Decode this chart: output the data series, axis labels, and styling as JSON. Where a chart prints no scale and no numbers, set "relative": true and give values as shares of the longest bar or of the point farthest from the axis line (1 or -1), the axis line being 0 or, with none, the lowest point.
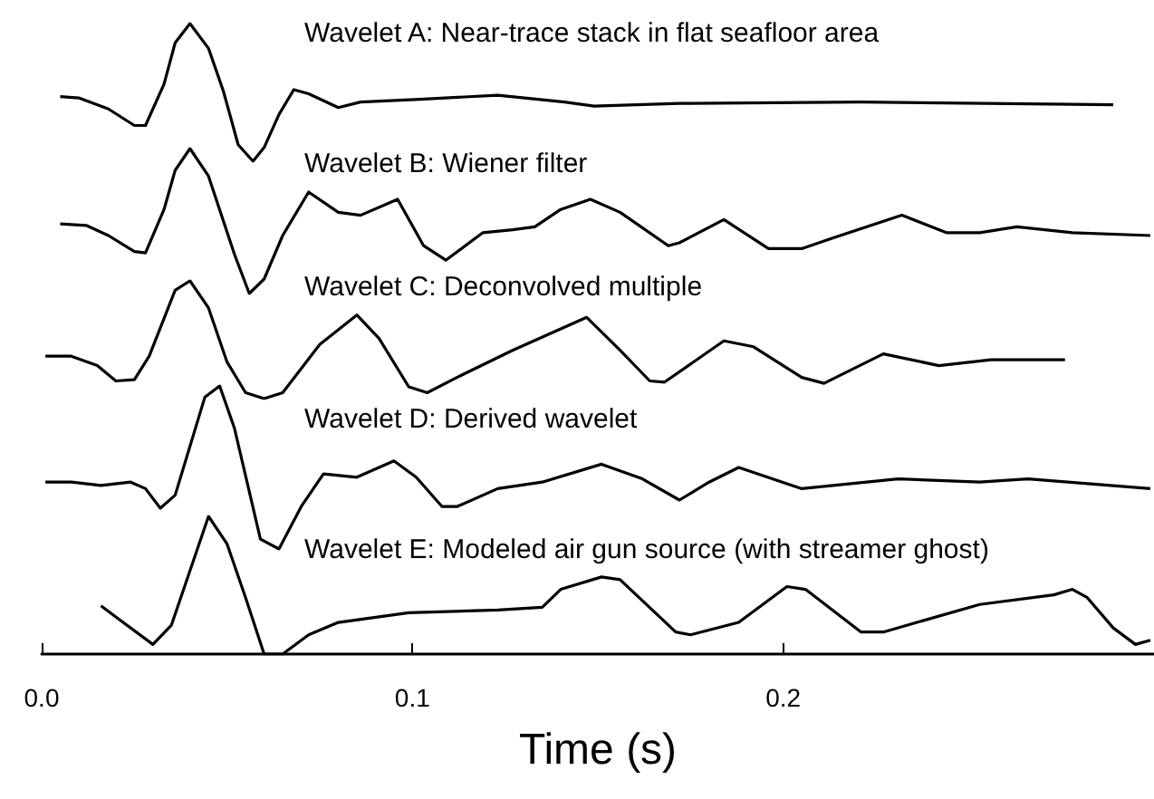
{
  "chart_data": [
    {
      "type": "line",
      "relative": true,
      "xlim": [
        0,
        0.3
      ],
      "tick_labels": false,
      "x": [
        0.005,
        0.01,
        0.018,
        0.025,
        0.028,
        0.033,
        0.036,
        0.04,
        0.045,
        0.049,
        0.053,
        0.057,
        0.06,
        0.064,
        0.068,
        0.072,
        0.08,
        0.086,
        0.102,
        0.123,
        0.141,
        0.149,
        0.172,
        0.221,
        0.289
      ],
      "series": [
        {
          "name": "Wavelet A: Near-trace stack in flat seafloor area",
          "color": "#000000",
          "values": [
            0.47,
            0.46,
            0.38,
            0.26,
            0.26,
            0.56,
            0.86,
            1.0,
            0.82,
            0.51,
            0.12,
            0,
            0.1,
            0.34,
            0.52,
            0.49,
            0.39,
            0.43,
            0.45,
            0.48,
            0.43,
            0.4,
            0.42,
            0.43,
            0.41
          ]
        }
      ]
    },
    {
      "type": "line",
      "relative": true,
      "xlim": [
        0,
        0.3
      ],
      "tick_labels": false,
      "x": [
        0.005,
        0.012,
        0.018,
        0.025,
        0.028,
        0.033,
        0.036,
        0.04,
        0.045,
        0.052,
        0.056,
        0.06,
        0.065,
        0.072,
        0.08,
        0.086,
        0.096,
        0.103,
        0.109,
        0.119,
        0.127,
        0.133,
        0.14,
        0.148,
        0.156,
        0.169,
        0.172,
        0.184,
        0.196,
        0.205,
        0.213,
        0.232,
        0.244,
        0.253,
        0.263,
        0.278,
        0.299
      ],
      "series": [
        {
          "name": "Wavelet B: Wiener filter",
          "color": "#000000",
          "values": [
            0.48,
            0.47,
            0.4,
            0.29,
            0.28,
            0.58,
            0.85,
            1.0,
            0.81,
            0.27,
            0,
            0.1,
            0.4,
            0.7,
            0.56,
            0.54,
            0.65,
            0.33,
            0.23,
            0.42,
            0.44,
            0.46,
            0.58,
            0.65,
            0.56,
            0.33,
            0.35,
            0.51,
            0.31,
            0.31,
            0.38,
            0.54,
            0.42,
            0.42,
            0.46,
            0.42,
            0.4
          ]
        }
      ]
    },
    {
      "type": "line",
      "relative": true,
      "xlim": [
        0,
        0.3
      ],
      "tick_labels": false,
      "x": [
        0.001,
        0.008,
        0.015,
        0.02,
        0.025,
        0.029,
        0.036,
        0.04,
        0.045,
        0.05,
        0.055,
        0.06,
        0.065,
        0.075,
        0.085,
        0.091,
        0.099,
        0.104,
        0.112,
        0.127,
        0.147,
        0.156,
        0.164,
        0.168,
        0.184,
        0.192,
        0.205,
        0.211,
        0.227,
        0.242,
        0.256,
        0.276
      ],
      "series": [
        {
          "name": "Wavelet C: Deconvolved multiple",
          "color": "#000000",
          "values": [
            0.36,
            0.36,
            0.28,
            0.15,
            0.16,
            0.36,
            0.92,
            1.0,
            0.77,
            0.31,
            0.05,
            0,
            0.05,
            0.46,
            0.71,
            0.51,
            0.1,
            0.05,
            0.18,
            0.41,
            0.69,
            0.41,
            0.15,
            0.14,
            0.49,
            0.44,
            0.18,
            0.13,
            0.38,
            0.28,
            0.33,
            0.33
          ]
        }
      ]
    },
    {
      "type": "line",
      "relative": true,
      "xlim": [
        0,
        0.3
      ],
      "tick_labels": false,
      "x": [
        0.001,
        0.008,
        0.016,
        0.024,
        0.028,
        0.032,
        0.036,
        0.044,
        0.048,
        0.052,
        0.059,
        0.064,
        0.07,
        0.076,
        0.085,
        0.095,
        0.101,
        0.108,
        0.112,
        0.123,
        0.135,
        0.151,
        0.162,
        0.172,
        0.18,
        0.188,
        0.205,
        0.231,
        0.253,
        0.266,
        0.299
      ],
      "series": [
        {
          "name": "Wavelet D: Derived wavelet",
          "color": "#000000",
          "values": [
            0.41,
            0.41,
            0.39,
            0.41,
            0.37,
            0.25,
            0.33,
            0.93,
            1.0,
            0.74,
            0.06,
            0,
            0.26,
            0.46,
            0.44,
            0.54,
            0.44,
            0.26,
            0.26,
            0.37,
            0.41,
            0.52,
            0.43,
            0.3,
            0.41,
            0.5,
            0.37,
            0.43,
            0.41,
            0.43,
            0.37
          ]
        }
      ]
    },
    {
      "type": "line",
      "relative": true,
      "xlim": [
        0,
        0.3
      ],
      "xticks": [
        {
          "value": 0,
          "label": "0.0"
        },
        {
          "value": 0.1,
          "label": "0.1"
        },
        {
          "value": 0.2,
          "label": "0.2"
        }
      ],
      "xlabel": "Time (s)",
      "tick_labels": "x",
      "x": [
        0.016,
        0.02,
        0.03,
        0.035,
        0.045,
        0.05,
        0.055,
        0.06,
        0.065,
        0.072,
        0.08,
        0.099,
        0.123,
        0.135,
        0.14,
        0.151,
        0.156,
        0.171,
        0.175,
        0.188,
        0.201,
        0.206,
        0.221,
        0.227,
        0.253,
        0.273,
        0.278,
        0.282,
        0.289,
        0.295,
        0.299
      ],
      "series": [
        {
          "name": "Wavelet E: Modeled air gun source (with streamer ghost)",
          "color": "#000000",
          "values": [
            0.35,
            0.27,
            0.07,
            0.21,
            1.0,
            0.8,
            0.41,
            0,
            0,
            0.14,
            0.23,
            0.3,
            0.32,
            0.34,
            0.47,
            0.56,
            0.54,
            0.16,
            0.14,
            0.23,
            0.49,
            0.47,
            0.16,
            0.16,
            0.36,
            0.43,
            0.47,
            0.41,
            0.19,
            0.07,
            0.1
          ]
        }
      ]
    }
  ]
}
